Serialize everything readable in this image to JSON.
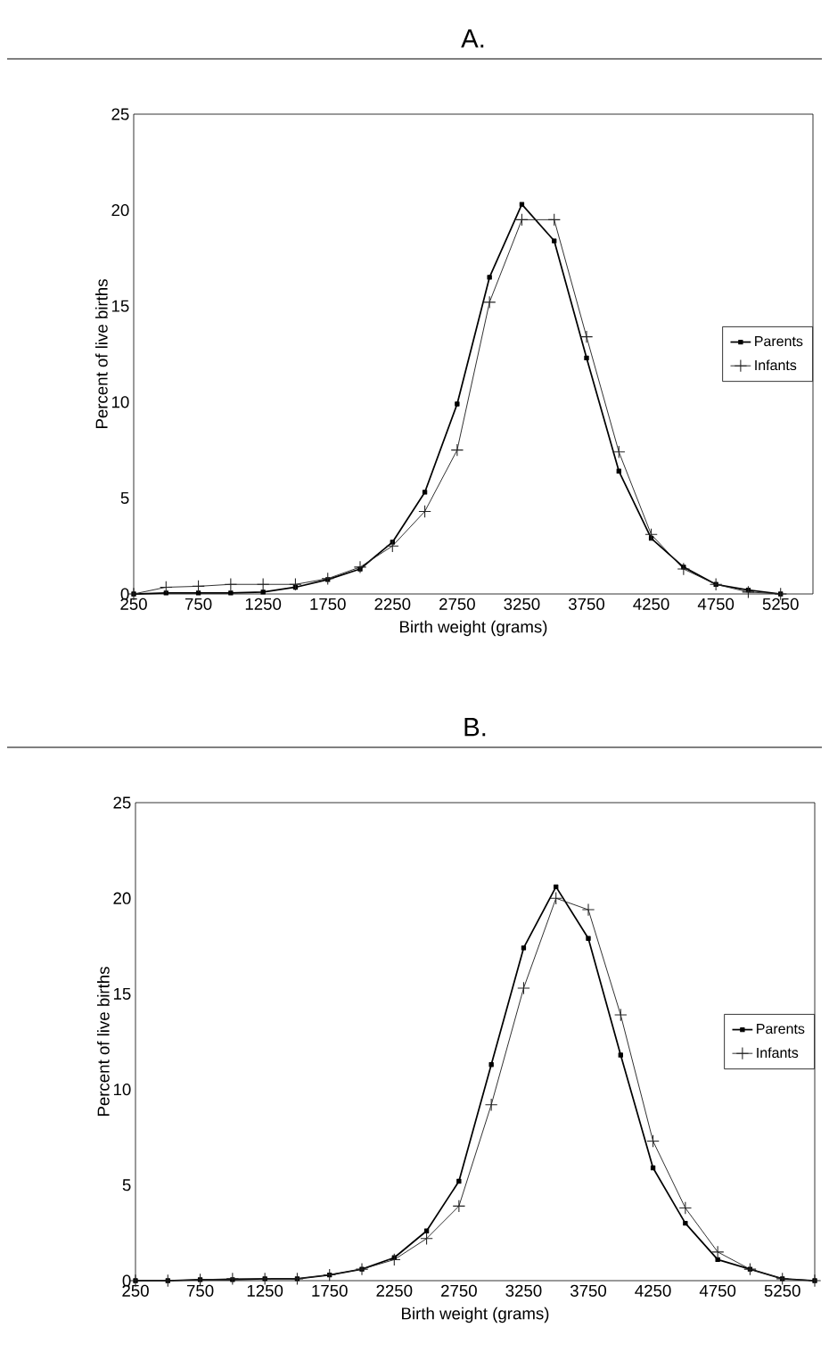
{
  "chart_data": [
    {
      "type": "line",
      "title": "A.",
      "xlabel": "Birth weight (grams)",
      "ylabel": "Percent of live births",
      "x": [
        250,
        500,
        750,
        1000,
        1250,
        1500,
        1750,
        2000,
        2250,
        2500,
        2750,
        3000,
        3250,
        3500,
        3750,
        4000,
        4250,
        4500,
        4750,
        5000,
        5250
      ],
      "xlim": [
        250,
        5500
      ],
      "ylim": [
        0,
        25
      ],
      "xticks": [
        250,
        750,
        1250,
        1750,
        2250,
        2750,
        3250,
        3750,
        4250,
        4750,
        5250
      ],
      "yticks": [
        0,
        5,
        10,
        15,
        20,
        25
      ],
      "legend": "right",
      "series": [
        {
          "name": "Parents",
          "color": "#000000",
          "marker": "square",
          "values": [
            0,
            0.05,
            0.05,
            0.05,
            0.1,
            0.35,
            0.75,
            1.3,
            2.7,
            5.3,
            9.9,
            16.5,
            20.3,
            18.4,
            12.3,
            6.4,
            2.9,
            1.4,
            0.5,
            0.2,
            0
          ]
        },
        {
          "name": "Infants",
          "color": "#222222",
          "marker": "cross",
          "values": [
            0,
            0.35,
            0.4,
            0.5,
            0.5,
            0.5,
            0.8,
            1.4,
            2.5,
            4.3,
            7.5,
            15.2,
            19.5,
            19.5,
            13.4,
            7.4,
            3.1,
            1.3,
            0.5,
            0.1,
            0
          ]
        }
      ]
    },
    {
      "type": "line",
      "title": "B.",
      "xlabel": "Birth weight (grams)",
      "ylabel": "Percent of live births",
      "x": [
        250,
        500,
        750,
        1000,
        1250,
        1500,
        1750,
        2000,
        2250,
        2500,
        2750,
        3000,
        3250,
        3500,
        3750,
        4000,
        4250,
        4500,
        4750,
        5000,
        5250,
        5500
      ],
      "xlim": [
        250,
        5500
      ],
      "ylim": [
        0,
        25
      ],
      "xticks": [
        250,
        750,
        1250,
        1750,
        2250,
        2750,
        3250,
        3750,
        4250,
        4750,
        5250
      ],
      "yticks": [
        0,
        5,
        10,
        15,
        20,
        25
      ],
      "legend": "right",
      "series": [
        {
          "name": "Parents",
          "color": "#000000",
          "marker": "square",
          "values": [
            0,
            0,
            0.05,
            0.05,
            0.1,
            0.1,
            0.3,
            0.6,
            1.2,
            2.6,
            5.2,
            11.3,
            17.4,
            20.6,
            17.9,
            11.8,
            5.9,
            3.0,
            1.1,
            0.6,
            0.1,
            0
          ]
        },
        {
          "name": "Infants",
          "color": "#222222",
          "marker": "cross",
          "values": [
            0,
            0,
            0.05,
            0.1,
            0.1,
            0.1,
            0.3,
            0.6,
            1.1,
            2.2,
            3.9,
            9.2,
            15.3,
            20.0,
            19.4,
            13.9,
            7.3,
            3.8,
            1.5,
            0.6,
            0.1,
            0
          ]
        }
      ]
    }
  ]
}
